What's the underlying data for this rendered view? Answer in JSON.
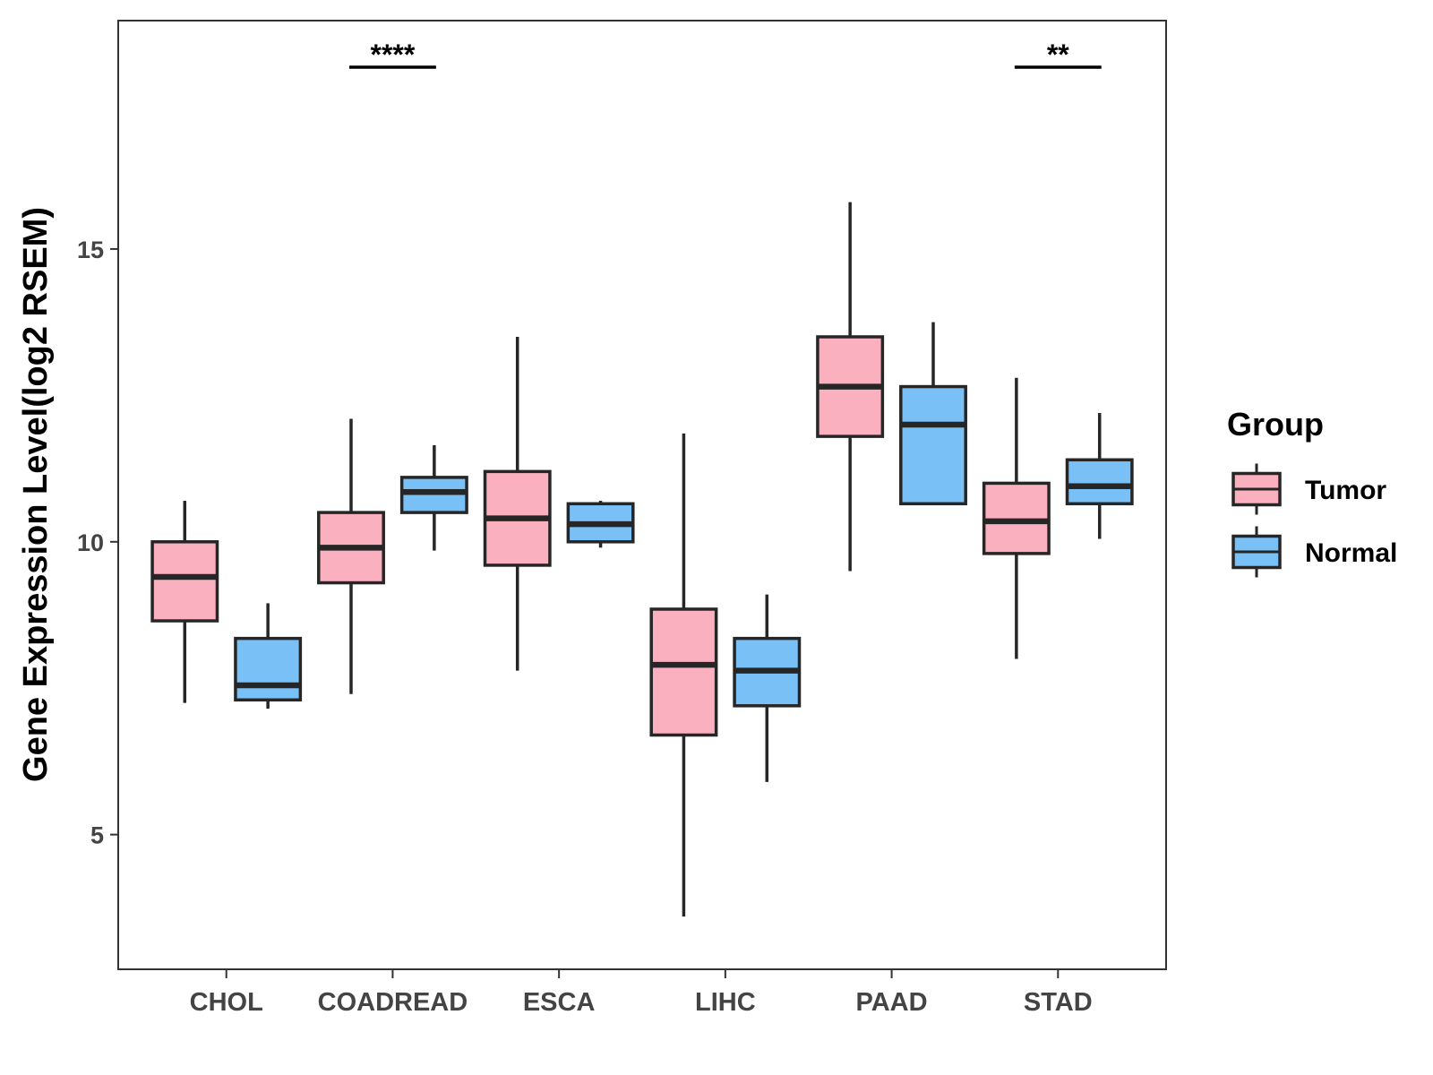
{
  "chart_data": {
    "type": "boxplot",
    "title": "",
    "xlabel": "",
    "ylabel": "Gene Expression Level(log2 RSEM)",
    "ylim": [
      2.7,
      18.9
    ],
    "yticks": [
      5,
      10,
      15
    ],
    "ytick_labels": [
      "5",
      "10",
      "15"
    ],
    "categories": [
      "CHOL",
      "COADREAD",
      "ESCA",
      "LIHC",
      "PAAD",
      "STAD"
    ],
    "legend": {
      "title": "Group",
      "position": "right"
    },
    "series": [
      {
        "name": "Tumor",
        "color": "#FBB0C0",
        "boxes": [
          {
            "whisker_low": 7.25,
            "q1": 8.65,
            "median": 9.4,
            "q3": 10.0,
            "whisker_high": 10.7
          },
          {
            "whisker_low": 7.4,
            "q1": 9.3,
            "median": 9.9,
            "q3": 10.5,
            "whisker_high": 12.1
          },
          {
            "whisker_low": 7.8,
            "q1": 9.6,
            "median": 10.4,
            "q3": 11.2,
            "whisker_high": 13.5
          },
          {
            "whisker_low": 3.6,
            "q1": 6.7,
            "median": 7.9,
            "q3": 8.85,
            "whisker_high": 11.85
          },
          {
            "whisker_low": 9.5,
            "q1": 11.8,
            "median": 12.65,
            "q3": 13.5,
            "whisker_high": 15.8
          },
          {
            "whisker_low": 8.0,
            "q1": 9.8,
            "median": 10.35,
            "q3": 11.0,
            "whisker_high": 12.8
          }
        ]
      },
      {
        "name": "Normal",
        "color": "#79C0F6",
        "boxes": [
          {
            "whisker_low": 7.15,
            "q1": 7.3,
            "median": 7.55,
            "q3": 8.35,
            "whisker_high": 8.95
          },
          {
            "whisker_low": 9.85,
            "q1": 10.5,
            "median": 10.85,
            "q3": 11.1,
            "whisker_high": 11.65
          },
          {
            "whisker_low": 9.9,
            "q1": 10.0,
            "median": 10.3,
            "q3": 10.65,
            "whisker_high": 10.7
          },
          {
            "whisker_low": 5.9,
            "q1": 7.2,
            "median": 7.8,
            "q3": 8.35,
            "whisker_high": 9.1
          },
          {
            "whisker_low": 10.65,
            "q1": 10.65,
            "median": 12.0,
            "q3": 12.65,
            "whisker_high": 13.75
          },
          {
            "whisker_low": 10.05,
            "q1": 10.65,
            "median": 10.95,
            "q3": 11.4,
            "whisker_high": 12.2
          }
        ]
      }
    ],
    "annotations": [
      {
        "category": "COADREAD",
        "label": "****"
      },
      {
        "category": "STAD",
        "label": "**"
      }
    ]
  }
}
